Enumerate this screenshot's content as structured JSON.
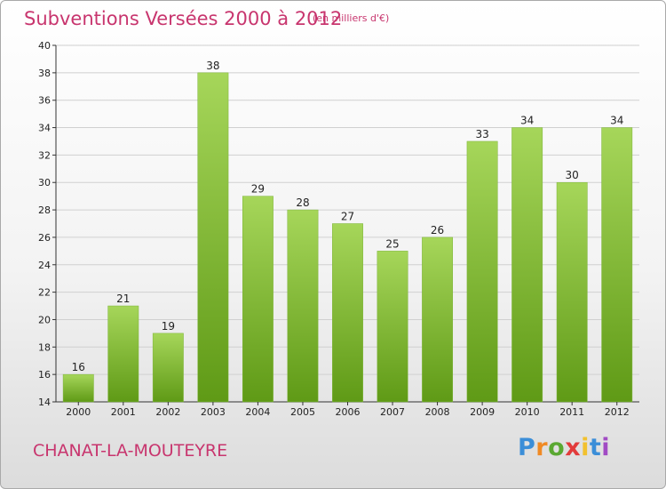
{
  "title": "Subventions Versées 2000 à 2012",
  "subtitle": "(en milliers d'€)",
  "commune": "CHANAT-LA-MOUTEYRE",
  "logo": {
    "letters": [
      "P",
      "r",
      "o",
      "x",
      "i",
      "t",
      "i"
    ]
  },
  "colors": {
    "title": "#c8356e",
    "bar_light": "#a6d65a",
    "bar_dark": "#5f9a16",
    "axis": "#333333",
    "grid": "#d0d0d0"
  },
  "chart_data": {
    "type": "bar",
    "title": "Subventions Versées 2000 à 2012",
    "subtitle": "(en milliers d'€)",
    "xlabel": "",
    "ylabel": "",
    "categories": [
      "2000",
      "2001",
      "2002",
      "2003",
      "2004",
      "2005",
      "2006",
      "2007",
      "2008",
      "2009",
      "2010",
      "2011",
      "2012"
    ],
    "values": [
      16,
      21,
      19,
      38,
      29,
      28,
      27,
      25,
      26,
      33,
      34,
      30,
      34
    ],
    "ylim": [
      14,
      40
    ],
    "yticks": [
      14,
      16,
      18,
      20,
      22,
      24,
      26,
      28,
      30,
      32,
      34,
      36,
      38,
      40
    ],
    "grid": true,
    "legend": "none"
  }
}
